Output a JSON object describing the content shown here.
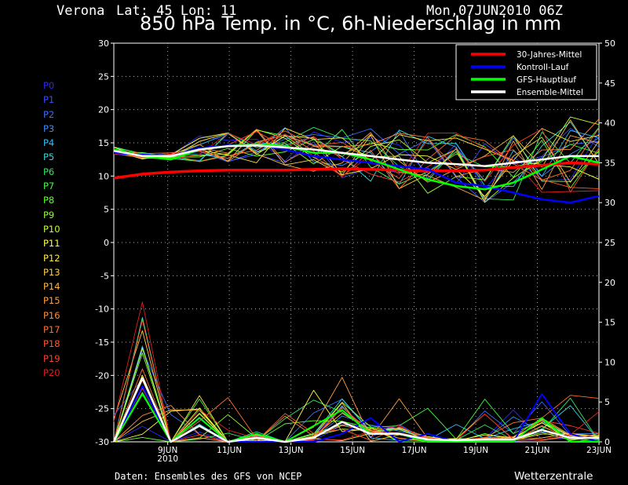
{
  "header": {
    "location": "Verona",
    "coords": "Lat: 45 Lon: 11",
    "run": "Mon,07JUN2010 06Z"
  },
  "chart_data": {
    "type": "line",
    "title": "850 hPa Temp. in °C, 6h-Niederschlag in mm",
    "ylabel_left_ticks": [
      "30",
      "25",
      "20",
      "15",
      "10",
      "5",
      "0",
      "-5",
      "-10",
      "-15",
      "-20",
      "-25",
      "-30"
    ],
    "ylabel_right_ticks": [
      "50",
      "45",
      "40",
      "35",
      "30",
      "25",
      "20",
      "15",
      "10",
      "5",
      "0"
    ],
    "ylim_left": [
      -30,
      30
    ],
    "ylim_right": [
      0,
      50
    ],
    "x_ticks": [
      {
        "label": "9JUN",
        "sub": "2010",
        "day": 9
      },
      {
        "label": "11JUN",
        "sub": "",
        "day": 11
      },
      {
        "label": "13JUN",
        "sub": "",
        "day": 13
      },
      {
        "label": "15JUN",
        "sub": "",
        "day": 15
      },
      {
        "label": "17JUN",
        "sub": "",
        "day": 17
      },
      {
        "label": "19JUN",
        "sub": "",
        "day": 19
      },
      {
        "label": "21JUN",
        "sub": "",
        "day": 21
      },
      {
        "label": "23JUN",
        "sub": "",
        "day": 23
      }
    ],
    "xlim_days": [
      7.25,
      23.0
    ],
    "grid": true,
    "legend": [
      {
        "label": "30-Jahres-Mittel",
        "color": "#ff0000"
      },
      {
        "label": "Kontroll-Lauf",
        "color": "#0000ff"
      },
      {
        "label": "GFS-Hauptlauf",
        "color": "#00ff00"
      },
      {
        "label": "Ensemble-Mittel",
        "color": "#ffffff"
      }
    ],
    "legend_position": "top-right",
    "temperature_series": {
      "climate_mean": [
        9.7,
        10.3,
        10.6,
        10.8,
        10.9,
        10.9,
        10.9,
        11.0,
        11.1,
        11.0,
        10.9,
        10.8,
        10.8,
        10.9,
        11.3,
        11.6,
        12.0,
        11.8
      ],
      "control": [
        13.5,
        13.2,
        13.0,
        14.2,
        14.6,
        14.8,
        14.0,
        13.0,
        12.5,
        12.0,
        11.5,
        11.0,
        9.0,
        8.5,
        7.5,
        6.5,
        6.0,
        7.0
      ],
      "gfs_main": [
        14.0,
        13.0,
        12.5,
        14.0,
        14.5,
        14.8,
        14.5,
        13.5,
        13.5,
        12.5,
        11.0,
        9.5,
        8.5,
        8.0,
        9.0,
        11.0,
        13.0,
        12.0
      ],
      "ensemble_mean": [
        13.8,
        13.0,
        13.0,
        14.0,
        14.5,
        14.6,
        14.3,
        14.0,
        13.5,
        13.0,
        12.5,
        12.0,
        11.8,
        11.5,
        12.0,
        12.5,
        13.0,
        13.0
      ]
    },
    "precipitation_series": {
      "control_mm": [
        0,
        7,
        0,
        3,
        0,
        0,
        0,
        0,
        1,
        3,
        0,
        1,
        0,
        0,
        0,
        6,
        1,
        0
      ],
      "gfs_main_mm": [
        0,
        6,
        0,
        3,
        0,
        1,
        0,
        2,
        4,
        1,
        1,
        0,
        0,
        0,
        0,
        3,
        0,
        0
      ],
      "ensemble_mean_mm": [
        0,
        8,
        0,
        2,
        0,
        0.5,
        0,
        0.5,
        2.5,
        1,
        1,
        0.3,
        0.2,
        0.3,
        0.3,
        1.5,
        0.5,
        0.5
      ]
    },
    "members": [
      "P0",
      "P1",
      "P2",
      "P3",
      "P4",
      "P5",
      "P6",
      "P7",
      "P8",
      "P9",
      "P10",
      "P11",
      "P12",
      "P13",
      "P14",
      "P15",
      "P16",
      "P17",
      "P18",
      "P19",
      "P20"
    ],
    "member_colors": [
      "#2a2aff",
      "#3a4cff",
      "#3a6cff",
      "#3a8cff",
      "#30c0ff",
      "#30d8d8",
      "#30e860",
      "#40ff40",
      "#60ff30",
      "#90ff30",
      "#c0ff30",
      "#ffff40",
      "#ffe840",
      "#ffd040",
      "#ffb840",
      "#ffa040",
      "#ff8c40",
      "#ff7030",
      "#ff5a30",
      "#ff4030",
      "#e02020"
    ]
  },
  "footer": {
    "source": "Daten: Ensembles des GFS von NCEP",
    "brand": "Wetterzentrale"
  }
}
